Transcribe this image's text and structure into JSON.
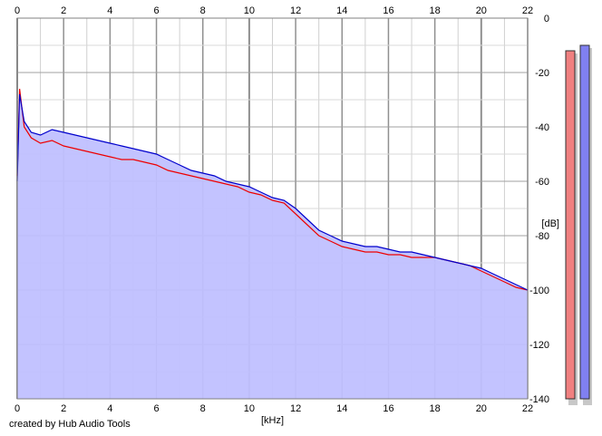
{
  "chart_data": {
    "type": "area",
    "xlabel": "[kHz]",
    "ylabel": "[dB]",
    "xlim": [
      0,
      22
    ],
    "ylim": [
      -140,
      0
    ],
    "x_ticks": [
      "0",
      "2",
      "4",
      "6",
      "8",
      "10",
      "12",
      "14",
      "16",
      "18",
      "20",
      "22"
    ],
    "y_ticks": [
      "0",
      "-20",
      "-40",
      "-60",
      "-80",
      "-100",
      "-120",
      "-140"
    ],
    "grid": true,
    "series": [
      {
        "color": "#0000cc",
        "fill": "#c0c0ff",
        "x": [
          0,
          0.1,
          0.3,
          0.6,
          1,
          1.5,
          2,
          2.5,
          3,
          3.5,
          4,
          4.5,
          5,
          5.5,
          6,
          6.5,
          7,
          7.5,
          8,
          8.5,
          9,
          9.5,
          10,
          10.5,
          11,
          11.5,
          12,
          12.5,
          13,
          13.5,
          14,
          14.5,
          15,
          15.5,
          16,
          16.5,
          17,
          17.5,
          18,
          18.5,
          19,
          19.5,
          20,
          20.5,
          21,
          21.5,
          22
        ],
        "values": [
          -60,
          -28,
          -38,
          -42,
          -43,
          -41,
          -42,
          -43,
          -44,
          -45,
          -46,
          -47,
          -48,
          -49,
          -50,
          -52,
          -54,
          -56,
          -57,
          -58,
          -60,
          -61,
          -62,
          -64,
          -66,
          -67,
          -70,
          -74,
          -78,
          -80,
          -82,
          -83,
          -84,
          -84,
          -85,
          -86,
          -86,
          -87,
          -88,
          -89,
          -90,
          -91,
          -92,
          -94,
          -96,
          -98,
          -100
        ]
      },
      {
        "color": "#ee0000",
        "x": [
          0,
          0.1,
          0.3,
          0.6,
          1,
          1.5,
          2,
          2.5,
          3,
          3.5,
          4,
          4.5,
          5,
          5.5,
          6,
          6.5,
          7,
          7.5,
          8,
          8.5,
          9,
          9.5,
          10,
          10.5,
          11,
          11.5,
          12,
          12.5,
          13,
          13.5,
          14,
          14.5,
          15,
          15.5,
          16,
          16.5,
          17,
          17.5,
          18,
          18.5,
          19,
          19.5,
          20,
          20.5,
          21,
          21.5,
          22
        ],
        "values": [
          -58,
          -26,
          -40,
          -44,
          -46,
          -45,
          -47,
          -48,
          -49,
          -50,
          -51,
          -52,
          -52,
          -53,
          -54,
          -56,
          -57,
          -58,
          -59,
          -60,
          -61,
          -62,
          -64,
          -65,
          -67,
          -68,
          -72,
          -76,
          -80,
          -82,
          -84,
          -85,
          -86,
          -86,
          -87,
          -87,
          -88,
          -88,
          -88,
          -89,
          -90,
          -91,
          -93,
          -95,
          -97,
          -99,
          -100
        ]
      }
    ],
    "level_meters": [
      {
        "color": "#f08080",
        "top_db": -12
      },
      {
        "color": "#8080f0",
        "top_db": -10
      }
    ]
  },
  "credit": "created by Hub Audio Tools"
}
